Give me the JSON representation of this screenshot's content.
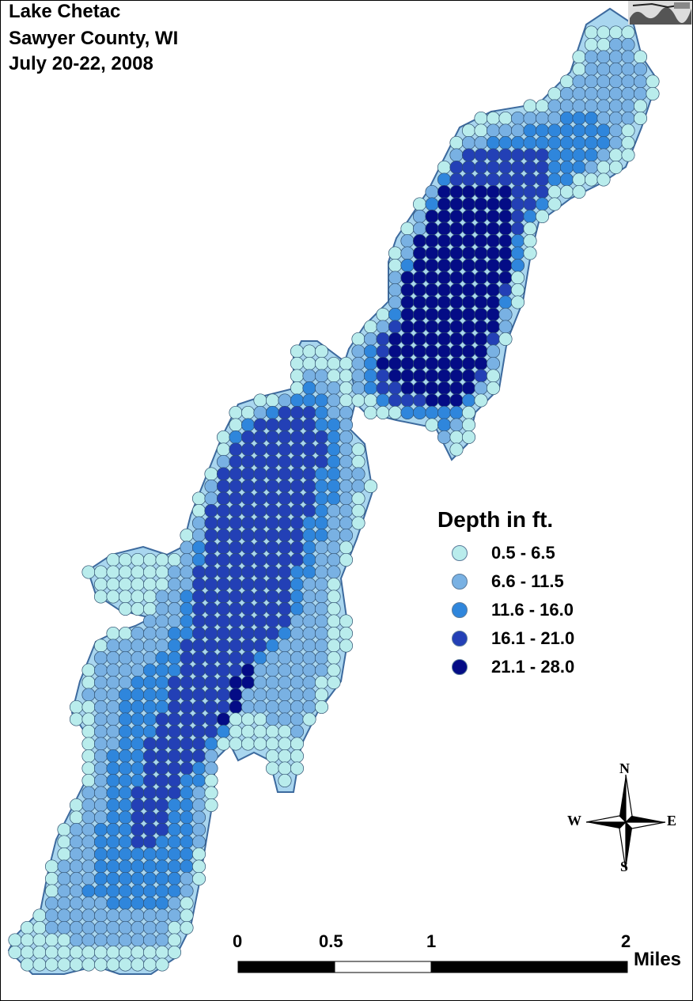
{
  "title_lines": [
    "Lake Chetac",
    "Sawyer County, WI",
    "July 20-22, 2008"
  ],
  "legend": {
    "title": "Depth in ft.",
    "items": [
      {
        "label": "0.5 - 6.5",
        "color": "#b9ecec"
      },
      {
        "label": "6.6 - 11.5",
        "color": "#79b1e3"
      },
      {
        "label": "11.6 - 16.0",
        "color": "#2f86dc"
      },
      {
        "label": "16.1 - 21.0",
        "color": "#2340b6"
      },
      {
        "label": "21.1 - 28.0",
        "color": "#040c86"
      }
    ]
  },
  "scale_bar": {
    "labels": [
      "0",
      "0.5",
      "1",
      "2"
    ],
    "units": "Miles"
  },
  "compass": {
    "n": "N",
    "s": "S",
    "e": "E",
    "w": "W"
  },
  "map_colors": {
    "lake_edge": "#3d6a9e",
    "lake_fill": "#a9d6ef",
    "point_stroke": "#2f4f6f"
  },
  "logo_icon": "agency-logo-icon"
}
